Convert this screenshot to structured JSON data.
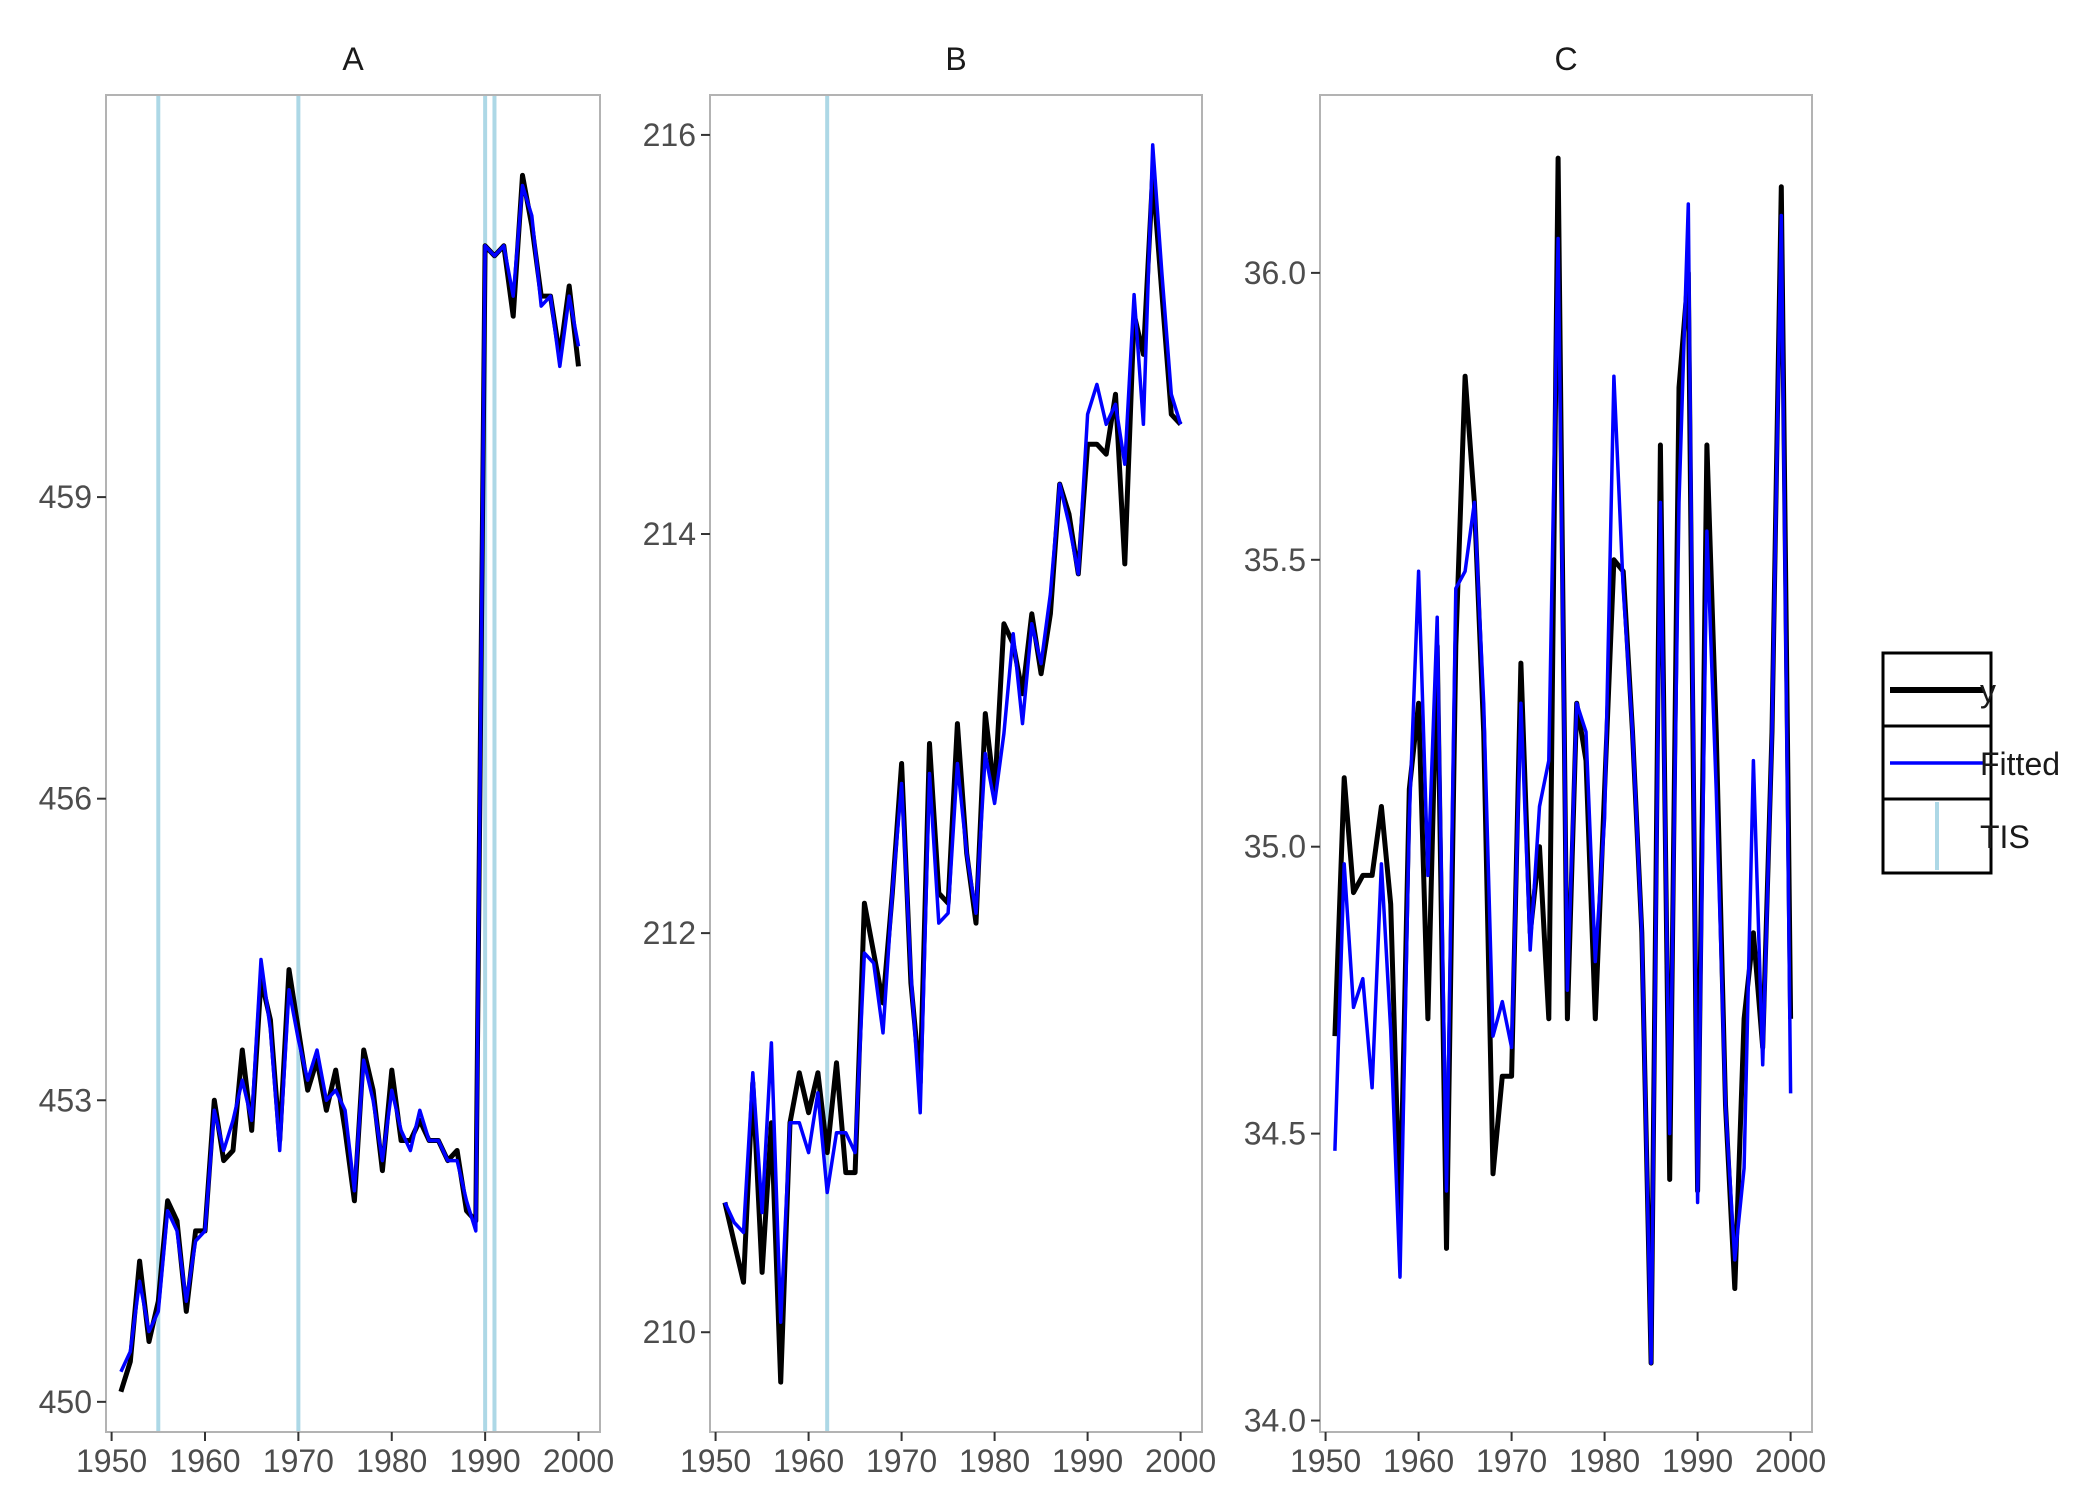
{
  "chart_data": {
    "type": "line",
    "legend": {
      "placement": "right",
      "entries": [
        {
          "key": "y",
          "label": "y",
          "color": "#000000",
          "glyph": "line"
        },
        {
          "key": "fitted",
          "label": "Fitted",
          "color": "#0000ff",
          "glyph": "line"
        },
        {
          "key": "tis",
          "label": "TIS",
          "color": "#add8e6",
          "glyph": "vline"
        }
      ]
    },
    "colors": {
      "y": "#000000",
      "fitted": "#0000ff",
      "tis": "#add8e6",
      "panel_border": "#b3b3b3",
      "tick": "#333333"
    },
    "grid": false,
    "panels": [
      {
        "title": "A",
        "x": [
          1951,
          1952,
          1953,
          1954,
          1955,
          1956,
          1957,
          1958,
          1959,
          1960,
          1961,
          1962,
          1963,
          1964,
          1965,
          1966,
          1967,
          1968,
          1969,
          1970,
          1971,
          1972,
          1973,
          1974,
          1975,
          1976,
          1977,
          1978,
          1979,
          1980,
          1981,
          1982,
          1983,
          1984,
          1985,
          1986,
          1987,
          1988,
          1989,
          1990,
          1991,
          1992,
          1993,
          1994,
          1995,
          1996,
          1997,
          1998,
          1999,
          2000
        ],
        "xlim": [
          1949.4,
          2002.3
        ],
        "xticks": [
          1950,
          1960,
          1970,
          1980,
          1990,
          2000
        ],
        "ylim": [
          449.7,
          463.0
        ],
        "yticks": [
          450,
          453,
          456,
          459
        ],
        "ytick_labels": [
          "450",
          "453",
          "456",
          "459"
        ],
        "tis": [
          1955,
          1970,
          1990,
          1991
        ],
        "series": [
          {
            "name": "y",
            "values": [
              450.1,
              450.4,
              451.4,
              450.6,
              451.0,
              452.0,
              451.8,
              450.9,
              451.7,
              451.7,
              453.0,
              452.4,
              452.5,
              453.5,
              452.7,
              454.2,
              453.8,
              452.6,
              454.3,
              453.7,
              453.1,
              453.4,
              452.9,
              453.3,
              452.7,
              452.0,
              453.5,
              453.1,
              452.3,
              453.3,
              452.6,
              452.6,
              452.8,
              452.6,
              452.6,
              452.4,
              452.5,
              451.9,
              451.8,
              461.5,
              461.4,
              461.5,
              460.8,
              462.2,
              461.7,
              461.0,
              461.0,
              460.4,
              461.1,
              460.3
            ]
          },
          {
            "name": "Fitted",
            "values": [
              450.3,
              450.5,
              451.2,
              450.7,
              450.9,
              451.9,
              451.7,
              451.0,
              451.6,
              451.7,
              452.9,
              452.5,
              452.8,
              453.2,
              452.8,
              454.4,
              453.7,
              452.5,
              454.1,
              453.6,
              453.2,
              453.5,
              453.0,
              453.1,
              452.9,
              452.1,
              453.4,
              453.0,
              452.4,
              453.1,
              452.7,
              452.5,
              452.9,
              452.6,
              452.6,
              452.4,
              452.4,
              452.0,
              451.7,
              461.5,
              461.4,
              461.5,
              461.0,
              462.1,
              461.8,
              460.9,
              461.0,
              460.3,
              461.0,
              460.5
            ]
          }
        ]
      },
      {
        "title": "B",
        "x": [
          1951,
          1952,
          1953,
          1954,
          1955,
          1956,
          1957,
          1958,
          1959,
          1960,
          1961,
          1962,
          1963,
          1964,
          1965,
          1966,
          1967,
          1968,
          1969,
          1970,
          1971,
          1972,
          1973,
          1974,
          1975,
          1976,
          1977,
          1978,
          1979,
          1980,
          1981,
          1982,
          1983,
          1984,
          1985,
          1986,
          1987,
          1988,
          1989,
          1990,
          1991,
          1992,
          1993,
          1994,
          1995,
          1996,
          1997,
          1998,
          1999,
          2000
        ],
        "xlim": [
          1949.4,
          2002.3
        ],
        "xticks": [
          1950,
          1960,
          1970,
          1980,
          1990,
          2000
        ],
        "ylim": [
          209.5,
          216.2
        ],
        "yticks": [
          210,
          212,
          214,
          216
        ],
        "ytick_labels": [
          "210",
          "212",
          "214",
          "216"
        ],
        "tis": [
          1962
        ],
        "series": [
          {
            "name": "y",
            "values": [
              210.65,
              210.45,
              210.25,
              211.25,
              210.3,
              211.05,
              209.75,
              211.05,
              211.3,
              211.1,
              211.3,
              210.9,
              211.35,
              210.8,
              210.8,
              212.15,
              211.9,
              211.65,
              212.2,
              212.85,
              211.75,
              211.25,
              212.95,
              212.2,
              212.15,
              213.05,
              212.4,
              212.05,
              213.1,
              212.7,
              213.55,
              213.45,
              213.2,
              213.6,
              213.3,
              213.6,
              214.25,
              214.1,
              213.8,
              214.45,
              214.45,
              214.4,
              214.7,
              213.85,
              215.1,
              214.9,
              215.8,
              215.2,
              214.6,
              214.55
            ]
          },
          {
            "name": "Fitted",
            "values": [
              210.65,
              210.55,
              210.5,
              211.3,
              210.6,
              211.45,
              210.05,
              211.05,
              211.05,
              210.9,
              211.2,
              210.7,
              211.0,
              211.0,
              210.9,
              211.9,
              211.85,
              211.5,
              212.2,
              212.75,
              211.8,
              211.1,
              212.8,
              212.05,
              212.1,
              212.85,
              212.4,
              212.1,
              212.9,
              212.65,
              213.0,
              213.5,
              213.05,
              213.55,
              213.35,
              213.7,
              214.25,
              214.05,
              213.8,
              214.6,
              214.75,
              214.55,
              214.65,
              214.35,
              215.2,
              214.55,
              215.95,
              215.3,
              214.7,
              214.55
            ]
          }
        ]
      },
      {
        "title": "C",
        "x": [
          1951,
          1952,
          1953,
          1954,
          1955,
          1956,
          1957,
          1958,
          1959,
          1960,
          1961,
          1962,
          1963,
          1964,
          1965,
          1966,
          1967,
          1968,
          1969,
          1970,
          1971,
          1972,
          1973,
          1974,
          1975,
          1976,
          1977,
          1978,
          1979,
          1980,
          1981,
          1982,
          1983,
          1984,
          1985,
          1986,
          1987,
          1988,
          1989,
          1990,
          1991,
          1992,
          1993,
          1994,
          1995,
          1996,
          1997,
          1998,
          1999,
          2000
        ],
        "xlim": [
          1949.4,
          2002.3
        ],
        "xticks": [
          1950,
          1960,
          1970,
          1980,
          1990,
          2000
        ],
        "ylim": [
          33.98,
          36.31
        ],
        "yticks": [
          34.0,
          34.5,
          35.0,
          35.5,
          36.0
        ],
        "ytick_labels": [
          "34.0",
          "34.5",
          "35.0",
          "35.5",
          "36.0"
        ],
        "tis": [],
        "series": [
          {
            "name": "y",
            "values": [
              34.67,
              35.12,
              34.92,
              34.95,
              34.95,
              35.07,
              34.9,
              34.35,
              35.1,
              35.25,
              34.7,
              35.35,
              34.3,
              35.35,
              35.82,
              35.6,
              35.2,
              34.43,
              34.6,
              34.6,
              35.32,
              34.85,
              35.0,
              34.7,
              36.2,
              34.7,
              35.25,
              35.15,
              34.7,
              35.1,
              35.5,
              35.48,
              35.2,
              34.85,
              34.1,
              35.7,
              34.42,
              35.8,
              36.0,
              34.4,
              35.7,
              35.2,
              34.55,
              34.23,
              34.7,
              34.85,
              34.65,
              35.2,
              36.15,
              34.7
            ]
          },
          {
            "name": "Fitted",
            "values": [
              34.47,
              34.97,
              34.72,
              34.77,
              34.58,
              34.97,
              34.68,
              34.25,
              35.05,
              35.48,
              34.95,
              35.4,
              34.4,
              35.45,
              35.48,
              35.6,
              35.25,
              34.67,
              34.73,
              34.65,
              35.25,
              34.82,
              35.07,
              35.15,
              36.06,
              34.75,
              35.25,
              35.2,
              34.8,
              35.05,
              35.82,
              35.45,
              35.2,
              34.85,
              34.1,
              35.6,
              34.5,
              35.6,
              36.12,
              34.38,
              35.55,
              35.1,
              34.55,
              34.28,
              34.44,
              35.15,
              34.62,
              35.2,
              36.1,
              34.57
            ]
          }
        ]
      }
    ]
  }
}
